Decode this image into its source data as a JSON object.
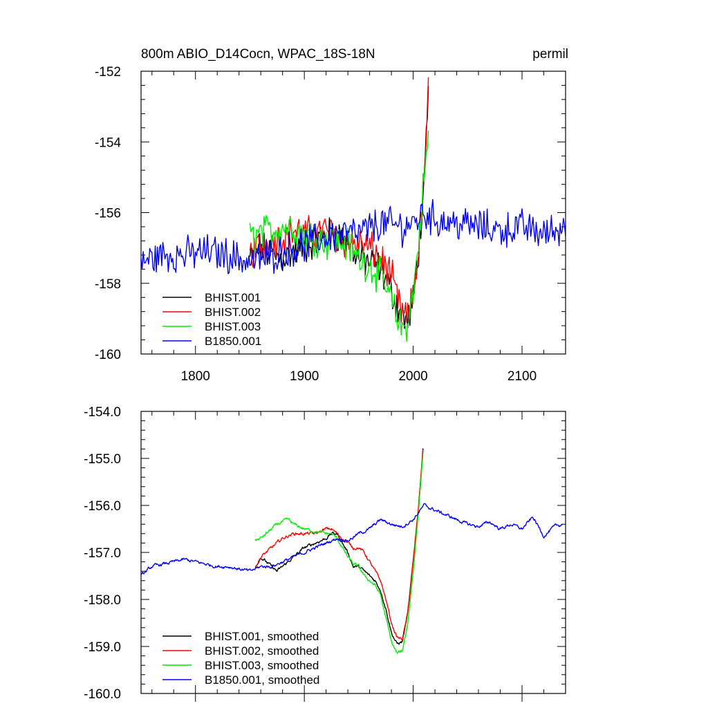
{
  "chart_data": [
    {
      "type": "line",
      "title": "800m ABIO_D14Cocn, WPAC_18S-18N",
      "units": "permil",
      "xlabel": "",
      "ylabel": "",
      "xlim": [
        1750,
        2140
      ],
      "ylim": [
        -160,
        -152
      ],
      "xticks": [
        1800,
        1900,
        2000,
        2100
      ],
      "xtick_labels": [
        "1800",
        "1900",
        "2000",
        "2100"
      ],
      "yticks": [
        -160,
        -158,
        -156,
        -154,
        -152
      ],
      "ytick_labels": [
        "-160",
        "-158",
        "-156",
        "-154",
        "-152"
      ],
      "legend_position": "bottom-left",
      "series": [
        {
          "name": "BHIST.001",
          "color": "#000000",
          "style": "noisy",
          "x": [
            1850,
            1860,
            1870,
            1880,
            1890,
            1900,
            1910,
            1920,
            1930,
            1940,
            1950,
            1960,
            1970,
            1980,
            1985,
            1990,
            1995,
            2000,
            2005,
            2010,
            2014
          ],
          "y": [
            -157.3,
            -157.0,
            -157.2,
            -157.3,
            -157.1,
            -157.0,
            -156.8,
            -156.6,
            -156.6,
            -156.8,
            -157.3,
            -157.4,
            -157.6,
            -158.2,
            -158.6,
            -158.9,
            -159.1,
            -158.5,
            -157.0,
            -155.5,
            -152.6
          ]
        },
        {
          "name": "BHIST.002",
          "color": "#ff0000",
          "style": "noisy",
          "x": [
            1850,
            1860,
            1870,
            1880,
            1890,
            1900,
            1910,
            1920,
            1930,
            1940,
            1950,
            1960,
            1970,
            1980,
            1985,
            1990,
            1995,
            2000,
            2005,
            2010,
            2014
          ],
          "y": [
            -157.2,
            -156.9,
            -156.8,
            -156.7,
            -156.5,
            -156.6,
            -156.6,
            -156.5,
            -156.7,
            -156.8,
            -156.9,
            -157.0,
            -157.3,
            -157.8,
            -158.4,
            -158.9,
            -159.0,
            -158.4,
            -157.0,
            -155.2,
            -152.4
          ]
        },
        {
          "name": "BHIST.003",
          "color": "#00ee00",
          "style": "noisy",
          "x": [
            1850,
            1860,
            1870,
            1880,
            1890,
            1900,
            1910,
            1920,
            1930,
            1940,
            1950,
            1960,
            1970,
            1980,
            1985,
            1990,
            1995,
            2000,
            2005,
            2010,
            2014
          ],
          "y": [
            -156.7,
            -156.6,
            -156.5,
            -156.4,
            -156.4,
            -156.6,
            -156.7,
            -156.8,
            -156.8,
            -156.9,
            -157.3,
            -157.5,
            -157.8,
            -158.5,
            -159.0,
            -159.3,
            -159.1,
            -158.3,
            -156.8,
            -155.0,
            -153.9
          ]
        },
        {
          "name": "B1850.001",
          "color": "#0000ff",
          "style": "noisy",
          "x": [
            1750,
            1770,
            1790,
            1810,
            1830,
            1850,
            1870,
            1890,
            1910,
            1930,
            1950,
            1970,
            1990,
            2000,
            2010,
            2020,
            2040,
            2060,
            2080,
            2100,
            2120,
            2140
          ],
          "y": [
            -157.4,
            -157.2,
            -157.2,
            -157.1,
            -157.2,
            -157.4,
            -157.2,
            -157.0,
            -156.8,
            -156.6,
            -156.6,
            -156.3,
            -156.4,
            -156.3,
            -156.0,
            -156.2,
            -156.3,
            -156.4,
            -156.5,
            -156.4,
            -156.6,
            -156.4
          ]
        }
      ]
    },
    {
      "type": "line",
      "title": "",
      "xlabel": "",
      "ylabel": "",
      "xlim": [
        1750,
        2140
      ],
      "ylim": [
        -160.0,
        -154.0
      ],
      "xticks": [
        1800,
        1900,
        2000,
        2100
      ],
      "xtick_labels": [],
      "yticks": [
        -160.0,
        -159.0,
        -158.0,
        -157.0,
        -156.0,
        -155.0,
        -154.0
      ],
      "ytick_labels": [
        "-160.0",
        "-159.0",
        "-158.0",
        "-157.0",
        "-156.0",
        "-155.0",
        "-154.0"
      ],
      "legend_position": "bottom-left",
      "series": [
        {
          "name": "BHIST.001, smoothed",
          "color": "#000000",
          "style": "smooth",
          "x": [
            1855,
            1860,
            1865,
            1870,
            1875,
            1880,
            1890,
            1900,
            1910,
            1920,
            1925,
            1930,
            1935,
            1940,
            1945,
            1950,
            1955,
            1960,
            1965,
            1970,
            1975,
            1980,
            1985,
            1990,
            1995,
            2000,
            2005,
            2009
          ],
          "y": [
            -157.3,
            -157.1,
            -157.2,
            -157.3,
            -157.4,
            -157.3,
            -157.1,
            -156.9,
            -156.8,
            -156.7,
            -156.6,
            -156.6,
            -156.8,
            -157.0,
            -157.3,
            -157.3,
            -157.4,
            -157.5,
            -157.6,
            -157.8,
            -158.2,
            -158.7,
            -158.95,
            -158.9,
            -158.3,
            -157.2,
            -156.0,
            -154.8
          ]
        },
        {
          "name": "BHIST.002, smoothed",
          "color": "#ff0000",
          "style": "smooth",
          "x": [
            1855,
            1860,
            1865,
            1870,
            1875,
            1880,
            1890,
            1900,
            1910,
            1920,
            1925,
            1930,
            1935,
            1940,
            1945,
            1950,
            1955,
            1960,
            1965,
            1970,
            1975,
            1980,
            1985,
            1990,
            1995,
            2000,
            2005,
            2009
          ],
          "y": [
            -157.3,
            -157.1,
            -157.0,
            -156.9,
            -156.8,
            -156.7,
            -156.6,
            -156.6,
            -156.6,
            -156.5,
            -156.5,
            -156.6,
            -156.7,
            -156.8,
            -156.9,
            -156.9,
            -157.0,
            -157.2,
            -157.4,
            -157.6,
            -158.0,
            -158.5,
            -158.8,
            -158.85,
            -158.3,
            -157.2,
            -156.0,
            -154.8
          ]
        },
        {
          "name": "BHIST.003, smoothed",
          "color": "#00ee00",
          "style": "smooth",
          "x": [
            1855,
            1860,
            1865,
            1870,
            1875,
            1880,
            1885,
            1890,
            1900,
            1910,
            1920,
            1925,
            1930,
            1935,
            1940,
            1945,
            1950,
            1955,
            1960,
            1965,
            1970,
            1975,
            1980,
            1985,
            1990,
            1995,
            2000,
            2005,
            2009
          ],
          "y": [
            -156.75,
            -156.7,
            -156.6,
            -156.5,
            -156.4,
            -156.35,
            -156.3,
            -156.4,
            -156.5,
            -156.55,
            -156.6,
            -156.6,
            -156.7,
            -156.9,
            -157.1,
            -157.25,
            -157.3,
            -157.5,
            -157.6,
            -157.7,
            -157.9,
            -158.4,
            -158.9,
            -159.15,
            -159.1,
            -158.5,
            -157.4,
            -156.1,
            -154.9
          ]
        },
        {
          "name": "B1850.001, smoothed",
          "color": "#0000ff",
          "style": "smooth",
          "x": [
            1750,
            1760,
            1770,
            1780,
            1790,
            1800,
            1810,
            1820,
            1830,
            1840,
            1850,
            1860,
            1870,
            1880,
            1890,
            1900,
            1910,
            1920,
            1930,
            1940,
            1950,
            1960,
            1970,
            1980,
            1990,
            2000,
            2010,
            2020,
            2030,
            2040,
            2050,
            2060,
            2070,
            2080,
            2090,
            2100,
            2110,
            2120,
            2130,
            2137
          ],
          "y": [
            -157.5,
            -157.3,
            -157.25,
            -157.2,
            -157.15,
            -157.2,
            -157.25,
            -157.3,
            -157.3,
            -157.35,
            -157.4,
            -157.3,
            -157.3,
            -157.2,
            -157.1,
            -157.0,
            -156.9,
            -156.8,
            -156.7,
            -156.75,
            -156.6,
            -156.5,
            -156.3,
            -156.4,
            -156.45,
            -156.3,
            -156.0,
            -156.1,
            -156.2,
            -156.3,
            -156.4,
            -156.45,
            -156.35,
            -156.5,
            -156.4,
            -156.5,
            -156.25,
            -156.65,
            -156.45,
            -156.4
          ]
        }
      ]
    }
  ]
}
